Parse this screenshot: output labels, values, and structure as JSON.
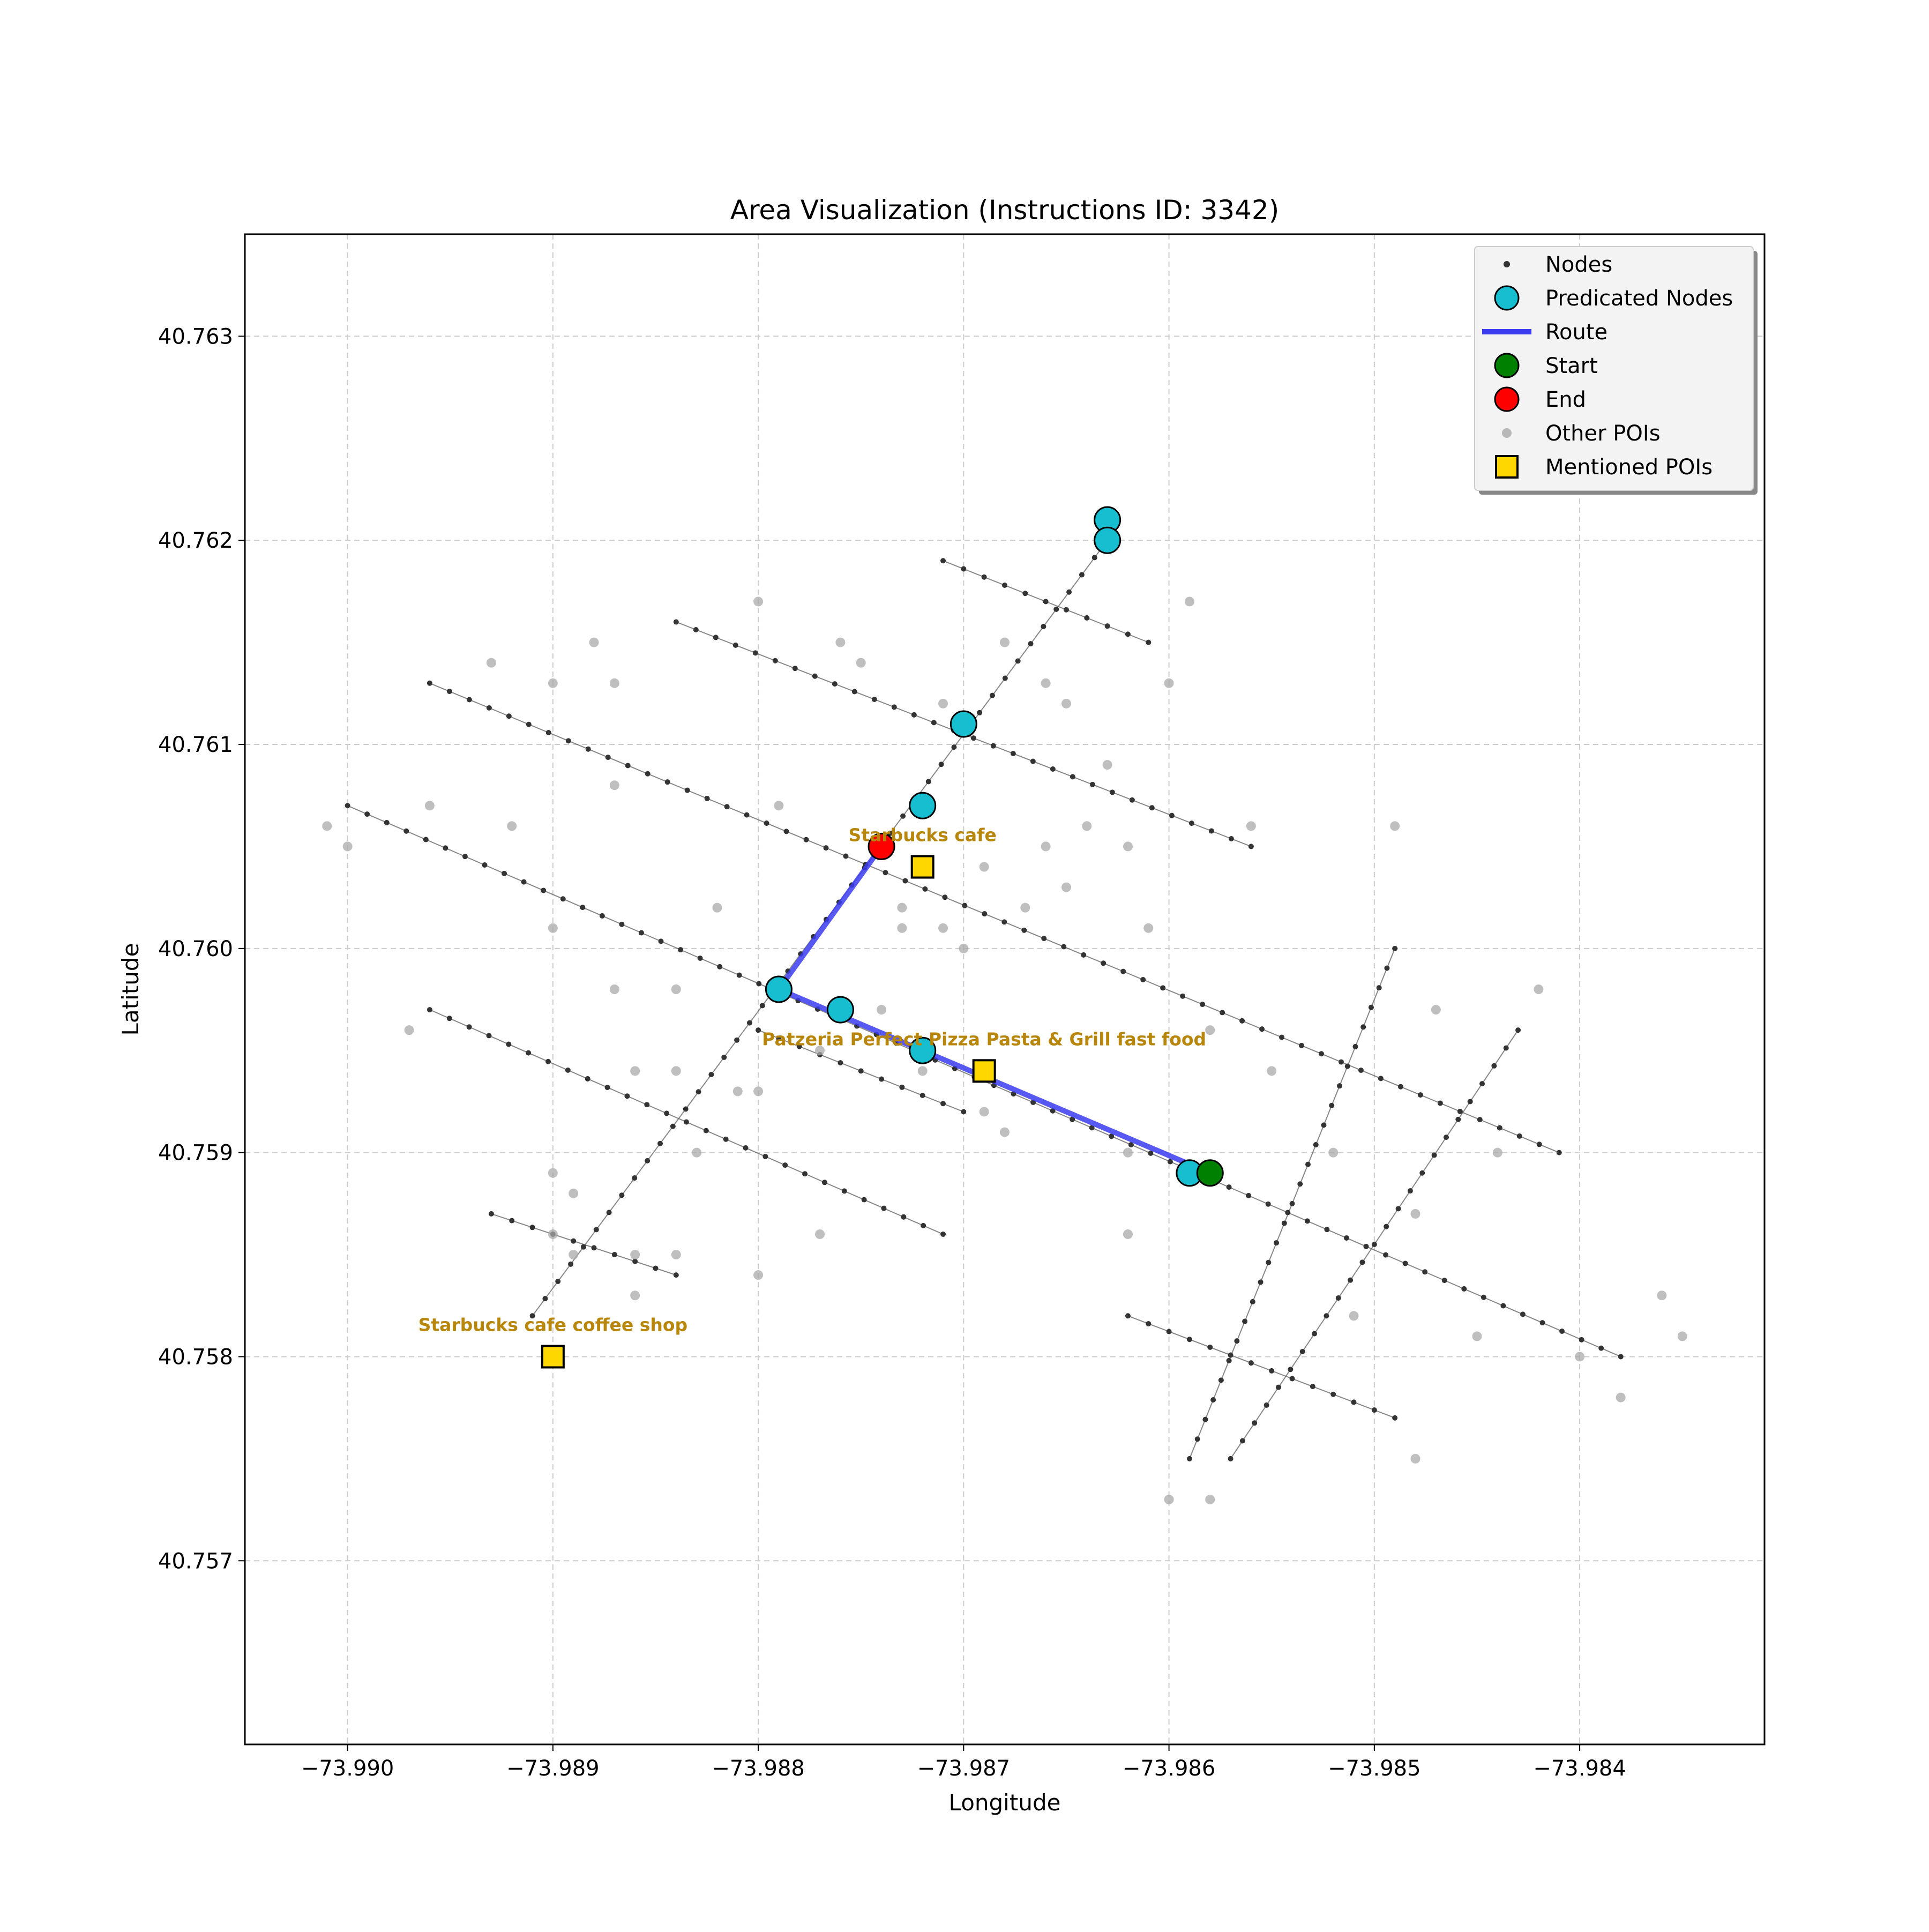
{
  "chart_data": {
    "type": "scatter",
    "title": "Area Visualization (Instructions ID: 3342)",
    "xlabel": "Longitude",
    "ylabel": "Latitude",
    "xlim": [
      -73.9905,
      -73.9831
    ],
    "ylim": [
      40.7561,
      40.7635
    ],
    "xticks": [
      -73.99,
      -73.989,
      -73.988,
      -73.987,
      -73.986,
      -73.985,
      -73.984
    ],
    "xtick_labels": [
      "−73.990",
      "−73.989",
      "−73.988",
      "−73.987",
      "−73.986",
      "−73.985",
      "−73.984"
    ],
    "yticks": [
      40.757,
      40.758,
      40.759,
      40.76,
      40.761,
      40.762,
      40.763
    ],
    "ytick_labels": [
      "40.757",
      "40.758",
      "40.759",
      "40.760",
      "40.761",
      "40.762",
      "40.763"
    ],
    "grid": true,
    "legend_position": "top-right",
    "legend": [
      {
        "key": "nodes",
        "label": "Nodes"
      },
      {
        "key": "predicated",
        "label": "Predicated Nodes"
      },
      {
        "key": "route",
        "label": "Route"
      },
      {
        "key": "start",
        "label": "Start"
      },
      {
        "key": "end",
        "label": "End"
      },
      {
        "key": "other_pois",
        "label": "Other POIs"
      },
      {
        "key": "mentioned_pois",
        "label": "Mentioned POIs"
      }
    ],
    "colors": {
      "nodes": "#333333",
      "edges": "#555555",
      "predicated": "#17becf",
      "route": "#3b3bf0",
      "start": "#008000",
      "end": "#ff0000",
      "other_pois": "#a9a9a9",
      "mentioned_pois": "#ffd700",
      "poi_label": "#b8860b",
      "grid": "#cccccc"
    },
    "streets": [
      {
        "from": [
          -73.9896,
          40.7613
        ],
        "to": [
          -73.9841,
          40.759
        ]
      },
      {
        "from": [
          -73.99,
          40.7607
        ],
        "to": [
          -73.9838,
          40.758
        ]
      },
      {
        "from": [
          -73.9884,
          40.7616
        ],
        "to": [
          -73.9856,
          40.7605
        ]
      },
      {
        "from": [
          -73.9871,
          40.7619
        ],
        "to": [
          -73.9861,
          40.7615
        ]
      },
      {
        "from": [
          -73.9896,
          40.7597
        ],
        "to": [
          -73.9871,
          40.7586
        ]
      },
      {
        "from": [
          -73.9893,
          40.7587
        ],
        "to": [
          -73.9884,
          40.7584
        ]
      },
      {
        "from": [
          -73.9862,
          40.7582
        ],
        "to": [
          -73.9849,
          40.7577
        ]
      },
      {
        "from": [
          -73.9891,
          40.7582
        ],
        "to": [
          -73.9863,
          40.762
        ]
      },
      {
        "from": [
          -73.9859,
          40.7575
        ],
        "to": [
          -73.9849,
          40.76
        ]
      },
      {
        "from": [
          -73.9857,
          40.7575
        ],
        "to": [
          -73.9843,
          40.7596
        ]
      },
      {
        "from": [
          -73.988,
          40.7596
        ],
        "to": [
          -73.987,
          40.7592
        ]
      }
    ],
    "predicated_nodes": [
      [
        -73.9863,
        40.7621
      ],
      [
        -73.9863,
        40.762
      ],
      [
        -73.987,
        40.7611
      ],
      [
        -73.9872,
        40.7607
      ],
      [
        -73.9879,
        40.7598
      ],
      [
        -73.9876,
        40.7597
      ],
      [
        -73.9872,
        40.7595
      ],
      [
        -73.9859,
        40.7589
      ]
    ],
    "route": [
      [
        -73.9858,
        40.7589
      ],
      [
        -73.9879,
        40.7598
      ],
      [
        -73.9874,
        40.7605
      ]
    ],
    "start": [
      -73.9858,
      40.7589
    ],
    "end": [
      -73.9874,
      40.7605
    ],
    "mentioned_pois": [
      {
        "label": "Starbucks cafe",
        "lon": -73.9872,
        "lat": 40.7604
      },
      {
        "label": "Patzeria Perfect Pizza Pasta & Grill fast food",
        "lon": -73.9869,
        "lat": 40.7594
      },
      {
        "label": "Starbucks cafe coffee shop",
        "lon": -73.989,
        "lat": 40.758
      }
    ],
    "other_pois": [
      [
        -73.9901,
        40.7606
      ],
      [
        -73.99,
        40.7605
      ],
      [
        -73.9896,
        40.7607
      ],
      [
        -73.9897,
        40.7596
      ],
      [
        -73.9893,
        40.7614
      ],
      [
        -73.9892,
        40.7606
      ],
      [
        -73.989,
        40.7613
      ],
      [
        -73.989,
        40.7601
      ],
      [
        -73.989,
        40.7589
      ],
      [
        -73.989,
        40.7586
      ],
      [
        -73.9889,
        40.7588
      ],
      [
        -73.9889,
        40.7585
      ],
      [
        -73.9888,
        40.7615
      ],
      [
        -73.9887,
        40.7613
      ],
      [
        -73.9887,
        40.7608
      ],
      [
        -73.9887,
        40.7598
      ],
      [
        -73.9886,
        40.7594
      ],
      [
        -73.9886,
        40.7585
      ],
      [
        -73.9886,
        40.7583
      ],
      [
        -73.9884,
        40.7598
      ],
      [
        -73.9884,
        40.7594
      ],
      [
        -73.9884,
        40.7585
      ],
      [
        -73.9883,
        40.759
      ],
      [
        -73.9882,
        40.7602
      ],
      [
        -73.9881,
        40.7593
      ],
      [
        -73.988,
        40.7617
      ],
      [
        -73.988,
        40.7593
      ],
      [
        -73.988,
        40.7584
      ],
      [
        -73.9879,
        40.7607
      ],
      [
        -73.9877,
        40.7595
      ],
      [
        -73.9877,
        40.7586
      ],
      [
        -73.9876,
        40.7615
      ],
      [
        -73.9875,
        40.7614
      ],
      [
        -73.9874,
        40.7597
      ],
      [
        -73.9873,
        40.7602
      ],
      [
        -73.9873,
        40.7601
      ],
      [
        -73.9872,
        40.7594
      ],
      [
        -73.9871,
        40.7612
      ],
      [
        -73.9871,
        40.7601
      ],
      [
        -73.987,
        40.76
      ],
      [
        -73.9869,
        40.7604
      ],
      [
        -73.9869,
        40.7592
      ],
      [
        -73.9868,
        40.7615
      ],
      [
        -73.9868,
        40.7591
      ],
      [
        -73.9867,
        40.7602
      ],
      [
        -73.9866,
        40.7613
      ],
      [
        -73.9866,
        40.7605
      ],
      [
        -73.9865,
        40.7612
      ],
      [
        -73.9865,
        40.7603
      ],
      [
        -73.9864,
        40.7606
      ],
      [
        -73.9863,
        40.7609
      ],
      [
        -73.9862,
        40.7605
      ],
      [
        -73.9862,
        40.759
      ],
      [
        -73.9862,
        40.7586
      ],
      [
        -73.9861,
        40.7601
      ],
      [
        -73.986,
        40.7613
      ],
      [
        -73.9859,
        40.7617
      ],
      [
        -73.9858,
        40.7596
      ],
      [
        -73.9856,
        40.7606
      ],
      [
        -73.9855,
        40.7594
      ],
      [
        -73.9852,
        40.759
      ],
      [
        -73.9851,
        40.7582
      ],
      [
        -73.9849,
        40.7606
      ],
      [
        -73.9848,
        40.7587
      ],
      [
        -73.9847,
        40.7597
      ],
      [
        -73.9845,
        40.7581
      ],
      [
        -73.9844,
        40.759
      ],
      [
        -73.9842,
        40.7598
      ],
      [
        -73.984,
        40.758
      ],
      [
        -73.9838,
        40.7578
      ],
      [
        -73.9836,
        40.7583
      ],
      [
        -73.9835,
        40.7581
      ],
      [
        -73.986,
        40.7573
      ],
      [
        -73.9858,
        40.7573
      ],
      [
        -73.9848,
        40.7575
      ]
    ]
  }
}
